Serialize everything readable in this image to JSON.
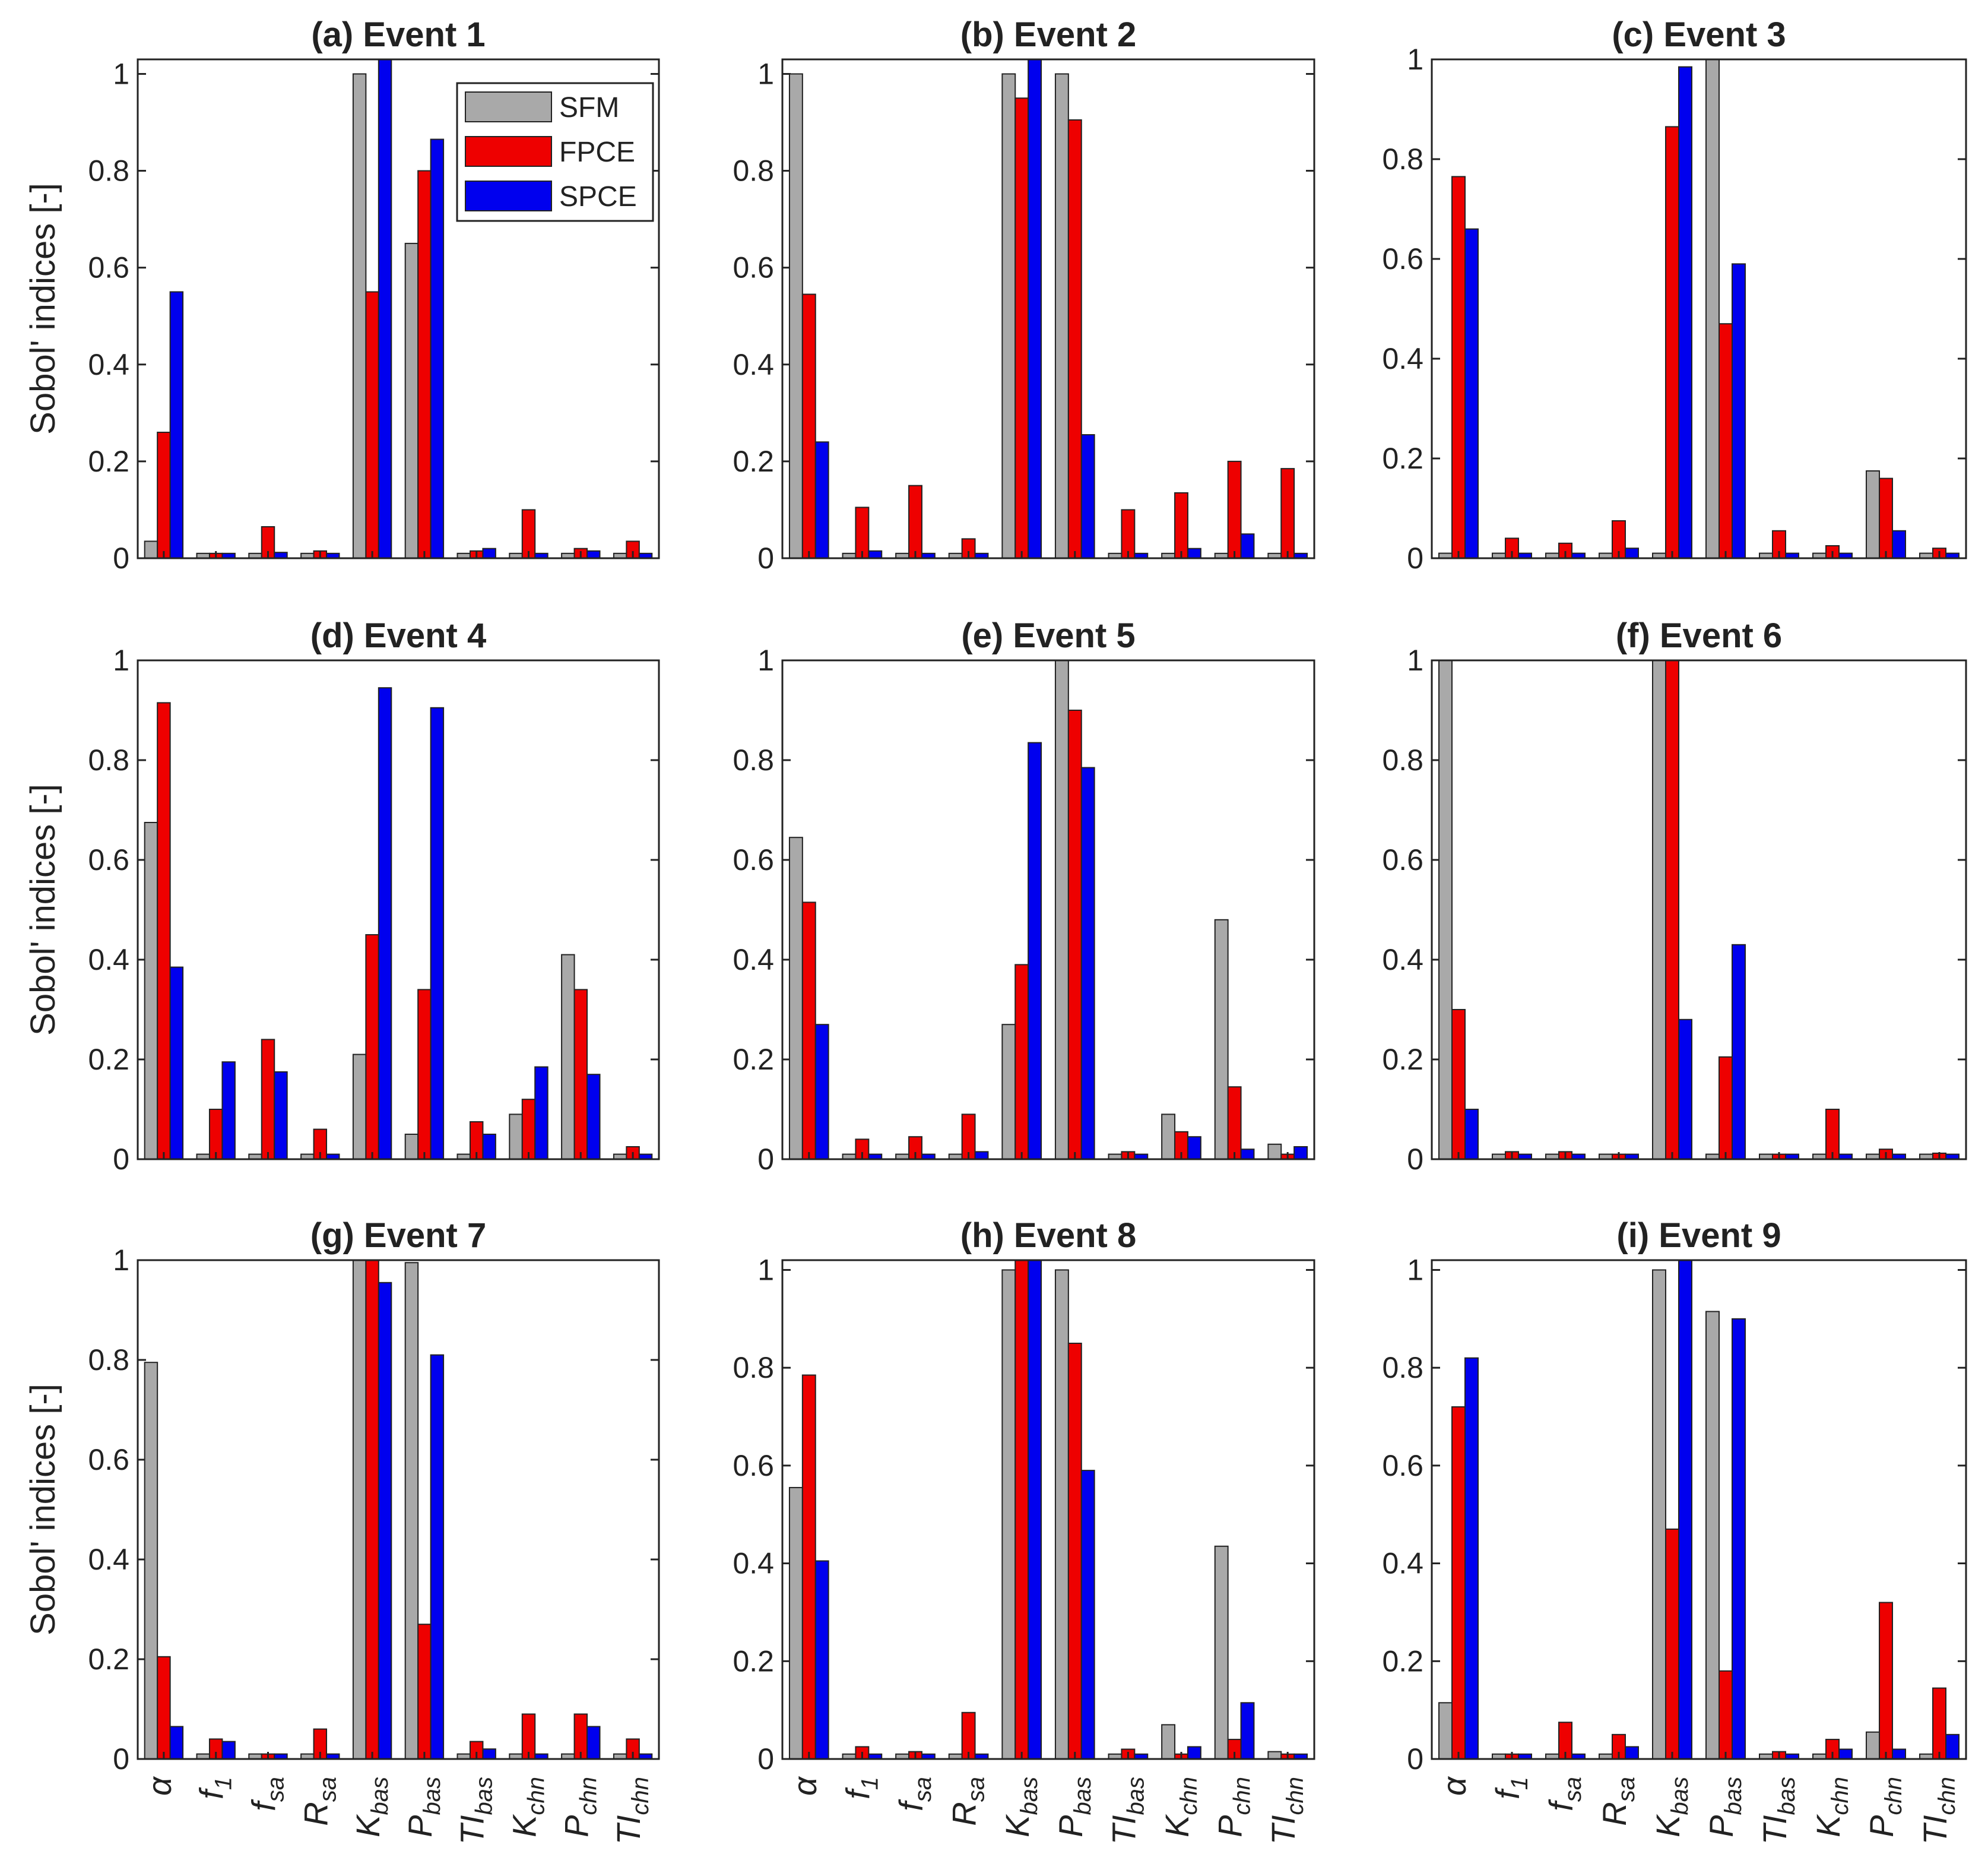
{
  "chart_data": [
    {
      "type": "bar",
      "title": "(a) Event 1",
      "ylabel": "Sobol' indices [-]",
      "ylim": [
        0,
        1.03
      ],
      "yticks": [
        "0",
        "0.2",
        "0.4",
        "0.6",
        "0.8",
        "1"
      ],
      "categories": [
        "α",
        "f1",
        "fsa",
        "Rsa",
        "Kbas",
        "Pbas",
        "TIbas",
        "Kchn",
        "Pchn",
        "TIchn"
      ],
      "series": [
        {
          "name": "SFM",
          "values": [
            0.035,
            0.01,
            0.01,
            0.01,
            1.0,
            0.65,
            0.01,
            0.01,
            0.01,
            0.01
          ]
        },
        {
          "name": "FPCE",
          "values": [
            0.26,
            0.01,
            0.065,
            0.015,
            0.55,
            0.8,
            0.015,
            0.1,
            0.02,
            0.035
          ]
        },
        {
          "name": "SPCE",
          "values": [
            0.55,
            0.01,
            0.012,
            0.01,
            1.03,
            0.865,
            0.02,
            0.01,
            0.015,
            0.01
          ]
        }
      ]
    },
    {
      "type": "bar",
      "title": "(b) Event 2",
      "ylabel": "",
      "ylim": [
        0,
        1.03
      ],
      "yticks": [
        "0",
        "0.2",
        "0.4",
        "0.6",
        "0.8",
        "1"
      ],
      "categories": [
        "α",
        "f1",
        "fsa",
        "Rsa",
        "Kbas",
        "Pbas",
        "TIbas",
        "Kchn",
        "Pchn",
        "TIchn"
      ],
      "series": [
        {
          "name": "SFM",
          "values": [
            1.0,
            0.01,
            0.01,
            0.01,
            1.0,
            1.0,
            0.01,
            0.01,
            0.01,
            0.01
          ]
        },
        {
          "name": "FPCE",
          "values": [
            0.545,
            0.105,
            0.15,
            0.04,
            0.95,
            0.905,
            0.1,
            0.135,
            0.2,
            0.185
          ]
        },
        {
          "name": "SPCE",
          "values": [
            0.24,
            0.015,
            0.01,
            0.01,
            1.03,
            0.255,
            0.01,
            0.02,
            0.05,
            0.01
          ]
        }
      ]
    },
    {
      "type": "bar",
      "title": "(c) Event 3",
      "ylabel": "",
      "ylim": [
        0,
        1.0
      ],
      "yticks": [
        "0",
        "0.2",
        "0.4",
        "0.6",
        "0.8",
        "1"
      ],
      "categories": [
        "α",
        "f1",
        "fsa",
        "Rsa",
        "Kbas",
        "Pbas",
        "TIbas",
        "Kchn",
        "Pchn",
        "TIchn"
      ],
      "series": [
        {
          "name": "SFM",
          "values": [
            0.01,
            0.01,
            0.01,
            0.01,
            0.01,
            1.0,
            0.01,
            0.01,
            0.175,
            0.01
          ]
        },
        {
          "name": "FPCE",
          "values": [
            0.765,
            0.04,
            0.03,
            0.075,
            0.865,
            0.47,
            0.055,
            0.025,
            0.16,
            0.02
          ]
        },
        {
          "name": "SPCE",
          "values": [
            0.66,
            0.01,
            0.01,
            0.02,
            0.985,
            0.59,
            0.01,
            0.01,
            0.055,
            0.01
          ]
        }
      ]
    },
    {
      "type": "bar",
      "title": "(d) Event 4",
      "ylabel": "Sobol' indices [-]",
      "ylim": [
        0,
        1.0
      ],
      "yticks": [
        "0",
        "0.2",
        "0.4",
        "0.6",
        "0.8",
        "1"
      ],
      "categories": [
        "α",
        "f1",
        "fsa",
        "Rsa",
        "Kbas",
        "Pbas",
        "TIbas",
        "Kchn",
        "Pchn",
        "TIchn"
      ],
      "series": [
        {
          "name": "SFM",
          "values": [
            0.675,
            0.01,
            0.01,
            0.01,
            0.21,
            0.05,
            0.01,
            0.09,
            0.41,
            0.01
          ]
        },
        {
          "name": "FPCE",
          "values": [
            0.915,
            0.1,
            0.24,
            0.06,
            0.45,
            0.34,
            0.075,
            0.12,
            0.34,
            0.025
          ]
        },
        {
          "name": "SPCE",
          "values": [
            0.385,
            0.195,
            0.175,
            0.01,
            0.945,
            0.905,
            0.05,
            0.185,
            0.17,
            0.01
          ]
        }
      ]
    },
    {
      "type": "bar",
      "title": "(e) Event 5",
      "ylabel": "",
      "ylim": [
        0,
        1.0
      ],
      "yticks": [
        "0",
        "0.2",
        "0.4",
        "0.6",
        "0.8",
        "1"
      ],
      "categories": [
        "α",
        "f1",
        "fsa",
        "Rsa",
        "Kbas",
        "Pbas",
        "TIbas",
        "Kchn",
        "Pchn",
        "TIchn"
      ],
      "series": [
        {
          "name": "SFM",
          "values": [
            0.645,
            0.01,
            0.01,
            0.01,
            0.27,
            1.0,
            0.01,
            0.09,
            0.48,
            0.03
          ]
        },
        {
          "name": "FPCE",
          "values": [
            0.515,
            0.04,
            0.045,
            0.09,
            0.39,
            0.9,
            0.015,
            0.055,
            0.145,
            0.01
          ]
        },
        {
          "name": "SPCE",
          "values": [
            0.27,
            0.01,
            0.01,
            0.015,
            0.835,
            0.785,
            0.01,
            0.045,
            0.02,
            0.025
          ]
        }
      ]
    },
    {
      "type": "bar",
      "title": "(f) Event 6",
      "ylabel": "",
      "ylim": [
        0,
        1.0
      ],
      "yticks": [
        "0",
        "0.2",
        "0.4",
        "0.6",
        "0.8",
        "1"
      ],
      "categories": [
        "α",
        "f1",
        "fsa",
        "Rsa",
        "Kbas",
        "Pbas",
        "TIbas",
        "Kchn",
        "Pchn",
        "TIchn"
      ],
      "series": [
        {
          "name": "SFM",
          "values": [
            1.0,
            0.01,
            0.01,
            0.01,
            1.0,
            0.01,
            0.01,
            0.01,
            0.01,
            0.01
          ]
        },
        {
          "name": "FPCE",
          "values": [
            0.3,
            0.015,
            0.015,
            0.01,
            1.0,
            0.205,
            0.01,
            0.1,
            0.02,
            0.012
          ]
        },
        {
          "name": "SPCE",
          "values": [
            0.1,
            0.01,
            0.01,
            0.01,
            0.28,
            0.43,
            0.01,
            0.01,
            0.01,
            0.01
          ]
        }
      ]
    },
    {
      "type": "bar",
      "title": "(g) Event 7",
      "ylabel": "Sobol' indices [-]",
      "ylim": [
        0,
        1.0
      ],
      "yticks": [
        "0",
        "0.2",
        "0.4",
        "0.6",
        "0.8",
        "1"
      ],
      "categories": [
        "α",
        "f1",
        "fsa",
        "Rsa",
        "Kbas",
        "Pbas",
        "TIbas",
        "Kchn",
        "Pchn",
        "TIchn"
      ],
      "series": [
        {
          "name": "SFM",
          "values": [
            0.795,
            0.01,
            0.01,
            0.01,
            1.0,
            0.995,
            0.01,
            0.01,
            0.01,
            0.01
          ]
        },
        {
          "name": "FPCE",
          "values": [
            0.205,
            0.04,
            0.01,
            0.06,
            1.0,
            0.27,
            0.035,
            0.09,
            0.09,
            0.04
          ]
        },
        {
          "name": "SPCE",
          "values": [
            0.065,
            0.035,
            0.01,
            0.01,
            0.955,
            0.81,
            0.02,
            0.01,
            0.065,
            0.01
          ]
        }
      ]
    },
    {
      "type": "bar",
      "title": "(h) Event 8",
      "ylabel": "",
      "ylim": [
        0,
        1.02
      ],
      "yticks": [
        "0",
        "0.2",
        "0.4",
        "0.6",
        "0.8",
        "1"
      ],
      "categories": [
        "α",
        "f1",
        "fsa",
        "Rsa",
        "Kbas",
        "Pbas",
        "TIbas",
        "Kchn",
        "Pchn",
        "TIchn"
      ],
      "series": [
        {
          "name": "SFM",
          "values": [
            0.555,
            0.01,
            0.01,
            0.01,
            1.0,
            1.0,
            0.01,
            0.07,
            0.435,
            0.015
          ]
        },
        {
          "name": "FPCE",
          "values": [
            0.785,
            0.025,
            0.015,
            0.095,
            1.02,
            0.85,
            0.02,
            0.01,
            0.04,
            0.01
          ]
        },
        {
          "name": "SPCE",
          "values": [
            0.405,
            0.01,
            0.01,
            0.01,
            1.02,
            0.59,
            0.01,
            0.025,
            0.115,
            0.01
          ]
        }
      ]
    },
    {
      "type": "bar",
      "title": "(i) Event 9",
      "ylabel": "",
      "ylim": [
        0,
        1.02
      ],
      "yticks": [
        "0",
        "0.2",
        "0.4",
        "0.6",
        "0.8",
        "1"
      ],
      "categories": [
        "α",
        "f1",
        "fsa",
        "Rsa",
        "Kbas",
        "Pbas",
        "TIbas",
        "Kchn",
        "Pchn",
        "TIchn"
      ],
      "series": [
        {
          "name": "SFM",
          "values": [
            0.115,
            0.01,
            0.01,
            0.01,
            1.0,
            0.915,
            0.01,
            0.01,
            0.055,
            0.01
          ]
        },
        {
          "name": "FPCE",
          "values": [
            0.72,
            0.01,
            0.075,
            0.05,
            0.47,
            0.18,
            0.015,
            0.04,
            0.32,
            0.145
          ]
        },
        {
          "name": "SPCE",
          "values": [
            0.82,
            0.01,
            0.01,
            0.025,
            1.02,
            0.9,
            0.01,
            0.02,
            0.02,
            0.05
          ]
        }
      ]
    }
  ],
  "legend": {
    "entries": [
      "SFM",
      "FPCE",
      "SPCE"
    ],
    "placement": "top-right of panel (a)"
  },
  "tick_labels": [
    {
      "base": "α",
      "sub": ""
    },
    {
      "base": "f",
      "sub": "1"
    },
    {
      "base": "f",
      "sub": "sa"
    },
    {
      "base": "R",
      "sub": "sa"
    },
    {
      "base": "K",
      "sub": "bas"
    },
    {
      "base": "P",
      "sub": "bas"
    },
    {
      "base": "TI",
      "sub": "bas"
    },
    {
      "base": "K",
      "sub": "chn"
    },
    {
      "base": "P",
      "sub": "chn"
    },
    {
      "base": "TI",
      "sub": "chn"
    }
  ],
  "colors": {
    "SFM": "#a9a9a9",
    "FPCE": "#ee0000",
    "SPCE": "#0000ee"
  }
}
